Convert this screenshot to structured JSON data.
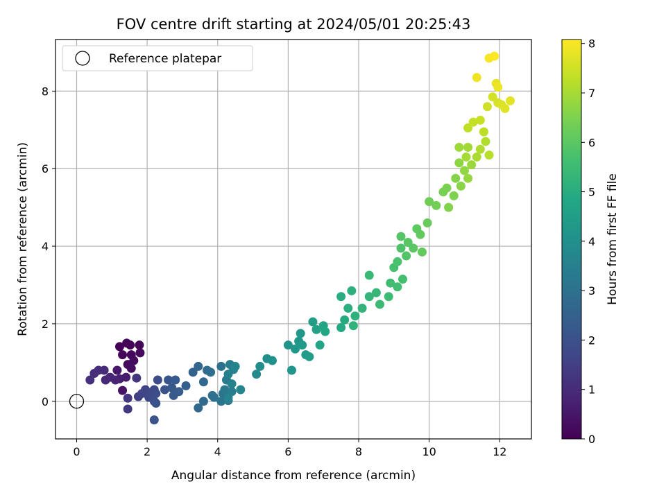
{
  "chart_data": {
    "type": "scatter",
    "title": "FOV centre drift starting at 2024/05/01 20:25:43",
    "xlabel": "Angular distance from reference (arcmin)",
    "ylabel": "Rotation from reference (arcmin)",
    "xlim": [
      -0.6,
      12.9
    ],
    "ylim": [
      -0.97,
      9.33
    ],
    "xticks": [
      0,
      2,
      4,
      6,
      8,
      10,
      12
    ],
    "xtick_labels": [
      "0",
      "2",
      "4",
      "6",
      "8",
      "10",
      "12"
    ],
    "yticks": [
      0,
      2,
      4,
      6,
      8
    ],
    "ytick_labels": [
      "0",
      "2",
      "4",
      "6",
      "8"
    ],
    "grid": true,
    "colorbar": {
      "label": "Hours from first FF file",
      "range": [
        0,
        8.08
      ],
      "ticks": [
        0,
        1,
        2,
        3,
        4,
        5,
        6,
        7,
        8
      ],
      "tick_labels": [
        "0",
        "1",
        "2",
        "3",
        "4",
        "5",
        "6",
        "7",
        "8"
      ],
      "colormap": "viridis"
    },
    "legend": {
      "position": "upper-left",
      "entries": [
        "Reference platepar"
      ]
    },
    "reference_point": {
      "x": 0,
      "y": 0
    },
    "points": [
      [
        1.22,
        1.41,
        0.05
      ],
      [
        1.42,
        1.5,
        0.07
      ],
      [
        1.52,
        1.45,
        0.1
      ],
      [
        1.78,
        1.45,
        0.12
      ],
      [
        1.3,
        1.2,
        0.15
      ],
      [
        1.55,
        1.2,
        0.18
      ],
      [
        1.8,
        1.25,
        0.2
      ],
      [
        1.62,
        1.05,
        0.22
      ],
      [
        1.45,
        0.95,
        0.25
      ],
      [
        1.55,
        0.85,
        0.28
      ],
      [
        1.3,
        0.28,
        0.4
      ],
      [
        1.15,
        0.8,
        0.5
      ],
      [
        1.4,
        0.62,
        0.6
      ],
      [
        1.22,
        0.58,
        0.7
      ],
      [
        1.1,
        0.55,
        0.8
      ],
      [
        0.95,
        0.62,
        0.85
      ],
      [
        0.82,
        0.55,
        0.9
      ],
      [
        0.78,
        0.8,
        0.95
      ],
      [
        0.62,
        0.8,
        1.0
      ],
      [
        0.5,
        0.72,
        1.05
      ],
      [
        0.38,
        0.55,
        1.1
      ],
      [
        1.7,
        0.6,
        1.2
      ],
      [
        1.45,
        0.08,
        1.3
      ],
      [
        1.45,
        -0.2,
        1.35
      ],
      [
        1.75,
        0.12,
        1.5
      ],
      [
        1.85,
        0.2,
        1.6
      ],
      [
        1.95,
        0.3,
        1.65
      ],
      [
        2.1,
        0.22,
        1.7
      ],
      [
        2.05,
        0.1,
        1.75
      ],
      [
        2.2,
        0.3,
        1.8
      ],
      [
        2.3,
        0.55,
        1.85
      ],
      [
        2.25,
        0.2,
        1.9
      ],
      [
        2.2,
        0.0,
        1.95
      ],
      [
        2.25,
        -0.05,
        2.0
      ],
      [
        2.2,
        -0.48,
        2.05
      ],
      [
        2.5,
        0.3,
        2.1
      ],
      [
        2.6,
        0.55,
        2.15
      ],
      [
        2.7,
        0.35,
        2.2
      ],
      [
        2.75,
        0.15,
        2.25
      ],
      [
        2.8,
        0.55,
        2.3
      ],
      [
        2.9,
        0.25,
        2.35
      ],
      [
        3.1,
        0.4,
        2.45
      ],
      [
        3.3,
        0.75,
        2.55
      ],
      [
        3.45,
        0.9,
        2.65
      ],
      [
        3.6,
        0.5,
        2.7
      ],
      [
        3.45,
        -0.17,
        2.75
      ],
      [
        3.6,
        0.0,
        2.8
      ],
      [
        3.7,
        0.8,
        2.85
      ],
      [
        3.8,
        0.75,
        2.9
      ],
      [
        3.85,
        0.15,
        2.95
      ],
      [
        3.9,
        0.1,
        3.0
      ],
      [
        4.1,
        0.9,
        3.05
      ],
      [
        4.15,
        0.2,
        3.1
      ],
      [
        4.1,
        0.0,
        3.15
      ],
      [
        4.2,
        0.3,
        3.2
      ],
      [
        4.25,
        0.55,
        3.25
      ],
      [
        4.3,
        0.02,
        3.3
      ],
      [
        4.35,
        0.95,
        3.35
      ],
      [
        4.4,
        0.25,
        3.4
      ],
      [
        4.45,
        0.82,
        3.45
      ],
      [
        4.3,
        0.7,
        3.5
      ],
      [
        4.4,
        0.45,
        3.55
      ],
      [
        4.3,
        0.1,
        3.6
      ],
      [
        4.5,
        0.9,
        3.65
      ],
      [
        4.65,
        0.3,
        3.7
      ],
      [
        5.1,
        0.7,
        3.8
      ],
      [
        5.2,
        0.9,
        3.9
      ],
      [
        5.4,
        1.1,
        4.0
      ],
      [
        5.55,
        1.05,
        4.05
      ],
      [
        6.0,
        1.45,
        4.1
      ],
      [
        6.1,
        0.8,
        4.15
      ],
      [
        6.2,
        1.35,
        4.2
      ],
      [
        6.3,
        1.55,
        4.25
      ],
      [
        6.35,
        1.75,
        4.3
      ],
      [
        6.4,
        1.45,
        4.35
      ],
      [
        6.5,
        1.2,
        4.4
      ],
      [
        6.6,
        1.15,
        4.45
      ],
      [
        6.7,
        2.05,
        4.5
      ],
      [
        6.8,
        1.85,
        4.6
      ],
      [
        6.9,
        1.45,
        4.7
      ],
      [
        7.0,
        1.95,
        4.75
      ],
      [
        7.05,
        1.8,
        4.8
      ],
      [
        7.5,
        1.9,
        4.9
      ],
      [
        7.6,
        2.1,
        4.95
      ],
      [
        7.5,
        2.7,
        5.0
      ],
      [
        7.7,
        2.4,
        5.05
      ],
      [
        7.8,
        2.85,
        5.1
      ],
      [
        7.9,
        2.2,
        5.15
      ],
      [
        7.85,
        1.95,
        5.2
      ],
      [
        8.1,
        2.4,
        5.25
      ],
      [
        8.3,
        2.7,
        5.3
      ],
      [
        8.5,
        2.8,
        5.35
      ],
      [
        8.3,
        3.25,
        5.4
      ],
      [
        8.6,
        2.5,
        5.45
      ],
      [
        8.85,
        2.7,
        5.5
      ],
      [
        8.9,
        3.05,
        5.55
      ],
      [
        9.1,
        2.95,
        5.6
      ],
      [
        9.25,
        3.15,
        5.65
      ],
      [
        9.0,
        3.45,
        5.7
      ],
      [
        9.1,
        3.6,
        5.75
      ],
      [
        9.2,
        3.95,
        5.8
      ],
      [
        9.35,
        3.75,
        5.85
      ],
      [
        9.2,
        4.25,
        5.9
      ],
      [
        9.4,
        4.1,
        5.95
      ],
      [
        9.55,
        3.95,
        6.0
      ],
      [
        9.65,
        4.45,
        6.05
      ],
      [
        9.75,
        4.3,
        6.1
      ],
      [
        9.8,
        3.85,
        6.15
      ],
      [
        9.95,
        4.6,
        6.2
      ],
      [
        10.0,
        5.15,
        6.3
      ],
      [
        10.2,
        5.05,
        6.35
      ],
      [
        10.4,
        5.4,
        6.4
      ],
      [
        10.5,
        5.5,
        6.45
      ],
      [
        10.7,
        5.3,
        6.5
      ],
      [
        10.55,
        5.0,
        6.55
      ],
      [
        10.75,
        5.75,
        6.6
      ],
      [
        10.9,
        5.55,
        6.65
      ],
      [
        10.85,
        6.15,
        6.7
      ],
      [
        11.0,
        5.95,
        6.75
      ],
      [
        11.1,
        5.75,
        6.8
      ],
      [
        11.2,
        6.1,
        6.85
      ],
      [
        10.85,
        6.55,
        6.9
      ],
      [
        11.1,
        6.55,
        6.95
      ],
      [
        11.05,
        6.3,
        7.0
      ],
      [
        11.35,
        6.3,
        7.05
      ],
      [
        11.45,
        6.5,
        7.1
      ],
      [
        11.6,
        6.7,
        7.15
      ],
      [
        11.7,
        6.35,
        7.2
      ],
      [
        11.55,
        6.95,
        7.25
      ],
      [
        11.1,
        7.05,
        7.3
      ],
      [
        11.25,
        7.2,
        7.35
      ],
      [
        11.45,
        7.25,
        7.4
      ],
      [
        11.65,
        7.6,
        7.5
      ],
      [
        11.8,
        7.85,
        7.55
      ],
      [
        11.95,
        7.7,
        7.6
      ],
      [
        12.05,
        7.65,
        7.65
      ],
      [
        12.15,
        7.55,
        7.7
      ],
      [
        12.3,
        7.75,
        7.75
      ],
      [
        11.9,
        8.2,
        7.8
      ],
      [
        11.95,
        8.1,
        7.85
      ],
      [
        11.35,
        8.35,
        7.9
      ],
      [
        11.7,
        8.85,
        8.0
      ],
      [
        11.85,
        8.9,
        8.05
      ]
    ]
  }
}
